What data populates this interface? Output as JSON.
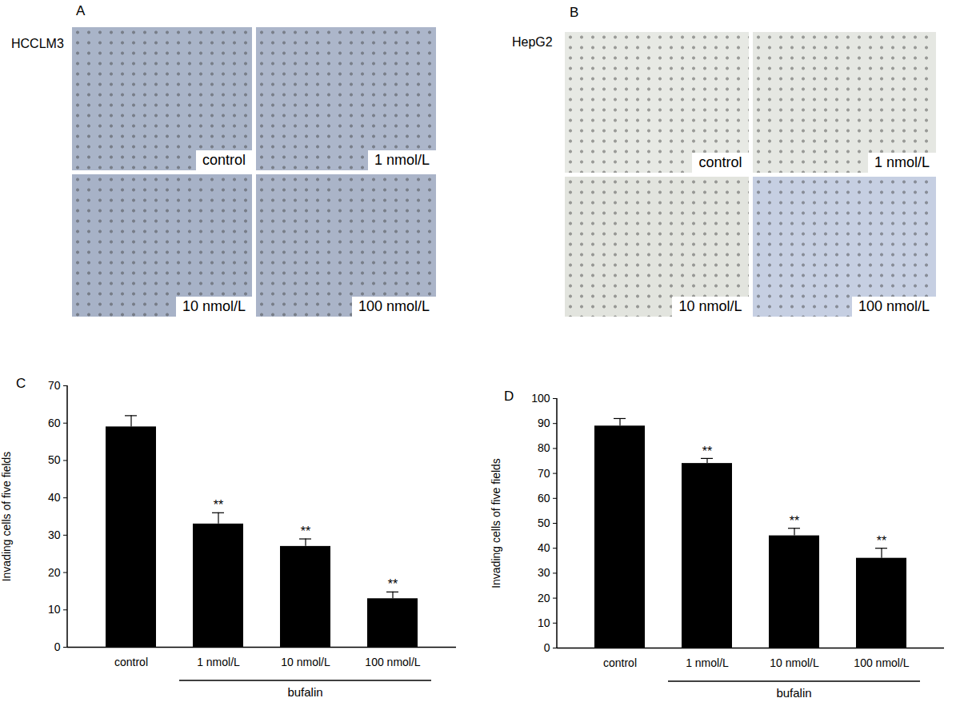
{
  "panels": [
    {
      "label": "A",
      "cell_line": "HCCLM3",
      "images": [
        "control",
        "1 nmol/L",
        "10 nmol/L",
        "100 nmol/L"
      ]
    },
    {
      "label": "B",
      "cell_line": "HepG2",
      "images": [
        "control",
        "1 nmol/L",
        "10 nmol/L",
        "100 nmol/L"
      ]
    }
  ],
  "chart_data": [
    {
      "type": "bar",
      "panel": "C",
      "categories": [
        "control",
        "1 nmol/L",
        "10 nmol/L",
        "100 nmol/L"
      ],
      "values": [
        59,
        33,
        27,
        13
      ],
      "errors": [
        3,
        3,
        2,
        1.8
      ],
      "significance": [
        null,
        "**",
        "**",
        "**"
      ],
      "group": {
        "label": "bufalin",
        "categories": [
          "1 nmol/L",
          "10 nmol/L",
          "100 nmol/L"
        ]
      },
      "y_label": "Invading cells of five fields",
      "color": "#000000",
      "ylim": [
        0,
        70
      ],
      "yticks": [
        0,
        10,
        20,
        30,
        40,
        50,
        60,
        70
      ]
    },
    {
      "type": "bar",
      "panel": "D",
      "categories": [
        "control",
        "1 nmol/L",
        "10 nmol/L",
        "100 nmol/L"
      ],
      "values": [
        89,
        74,
        45,
        36
      ],
      "errors": [
        3,
        2,
        3,
        4
      ],
      "significance": [
        null,
        "**",
        "**",
        "**"
      ],
      "group": {
        "label": "bufalin",
        "categories": [
          "1 nmol/L",
          "10 nmol/L",
          "100 nmol/L"
        ]
      },
      "y_label": "Invading cells of five fields",
      "color": "#000000",
      "ylim": [
        0,
        100
      ],
      "yticks": [
        0,
        10,
        20,
        30,
        40,
        50,
        60,
        70,
        80,
        90,
        100
      ]
    }
  ]
}
